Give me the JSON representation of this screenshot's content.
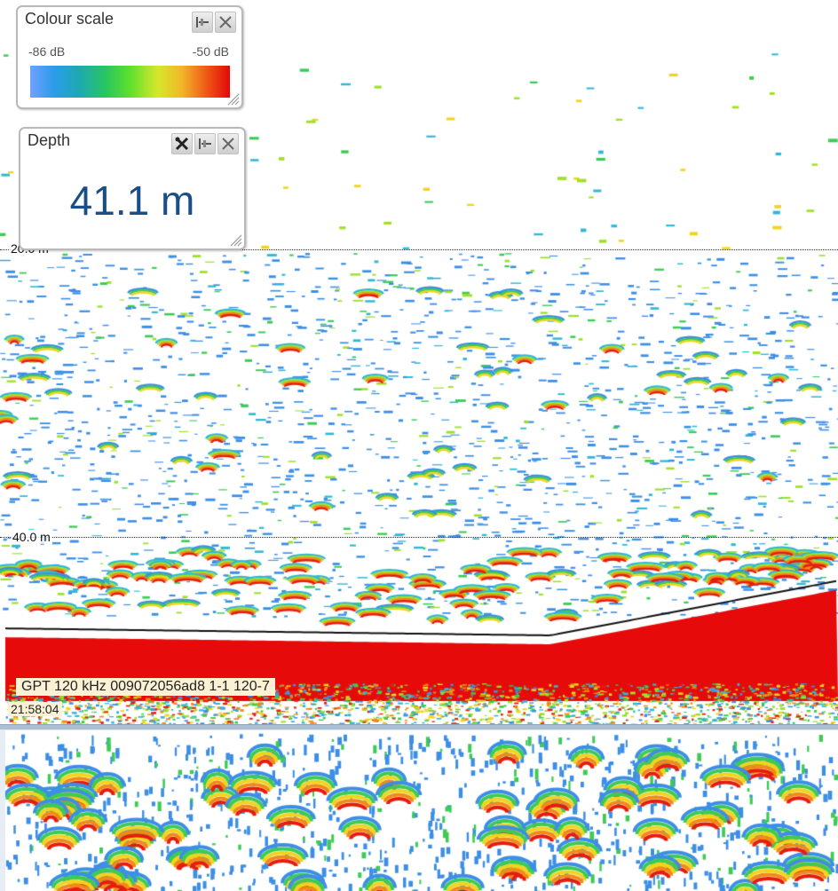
{
  "colour_scale": {
    "title": "Colour scale",
    "min_label": "-86 dB",
    "max_label": "-50 dB",
    "gradient_colors": [
      "#6fa0ff",
      "#2b9cea",
      "#1ea8b4",
      "#27c65f",
      "#5fe02c",
      "#d7e72a",
      "#f2b628",
      "#ef5a16",
      "#e00808"
    ],
    "buttons": [
      "pin-icon",
      "close-icon"
    ]
  },
  "depth_panel": {
    "title": "Depth",
    "value": "41.1 m",
    "value_color": "#1c4e86",
    "buttons": [
      "wrench-icon",
      "pin-icon",
      "close-icon"
    ]
  },
  "depth_markers": [
    "20.0 m",
    "40.0 m"
  ],
  "channel": {
    "label": "GPT 120 kHz 009072056ad8 1-1 120-7",
    "time": "21:58:04"
  },
  "echogram": {
    "bottom_color": "#e60a0a",
    "bottom_line_color": "#111111",
    "palette": [
      "#3c8ee6",
      "#2fb7d8",
      "#3ccb54",
      "#9fe02a",
      "#f1d41e",
      "#f08a18",
      "#e61c0c"
    ]
  }
}
